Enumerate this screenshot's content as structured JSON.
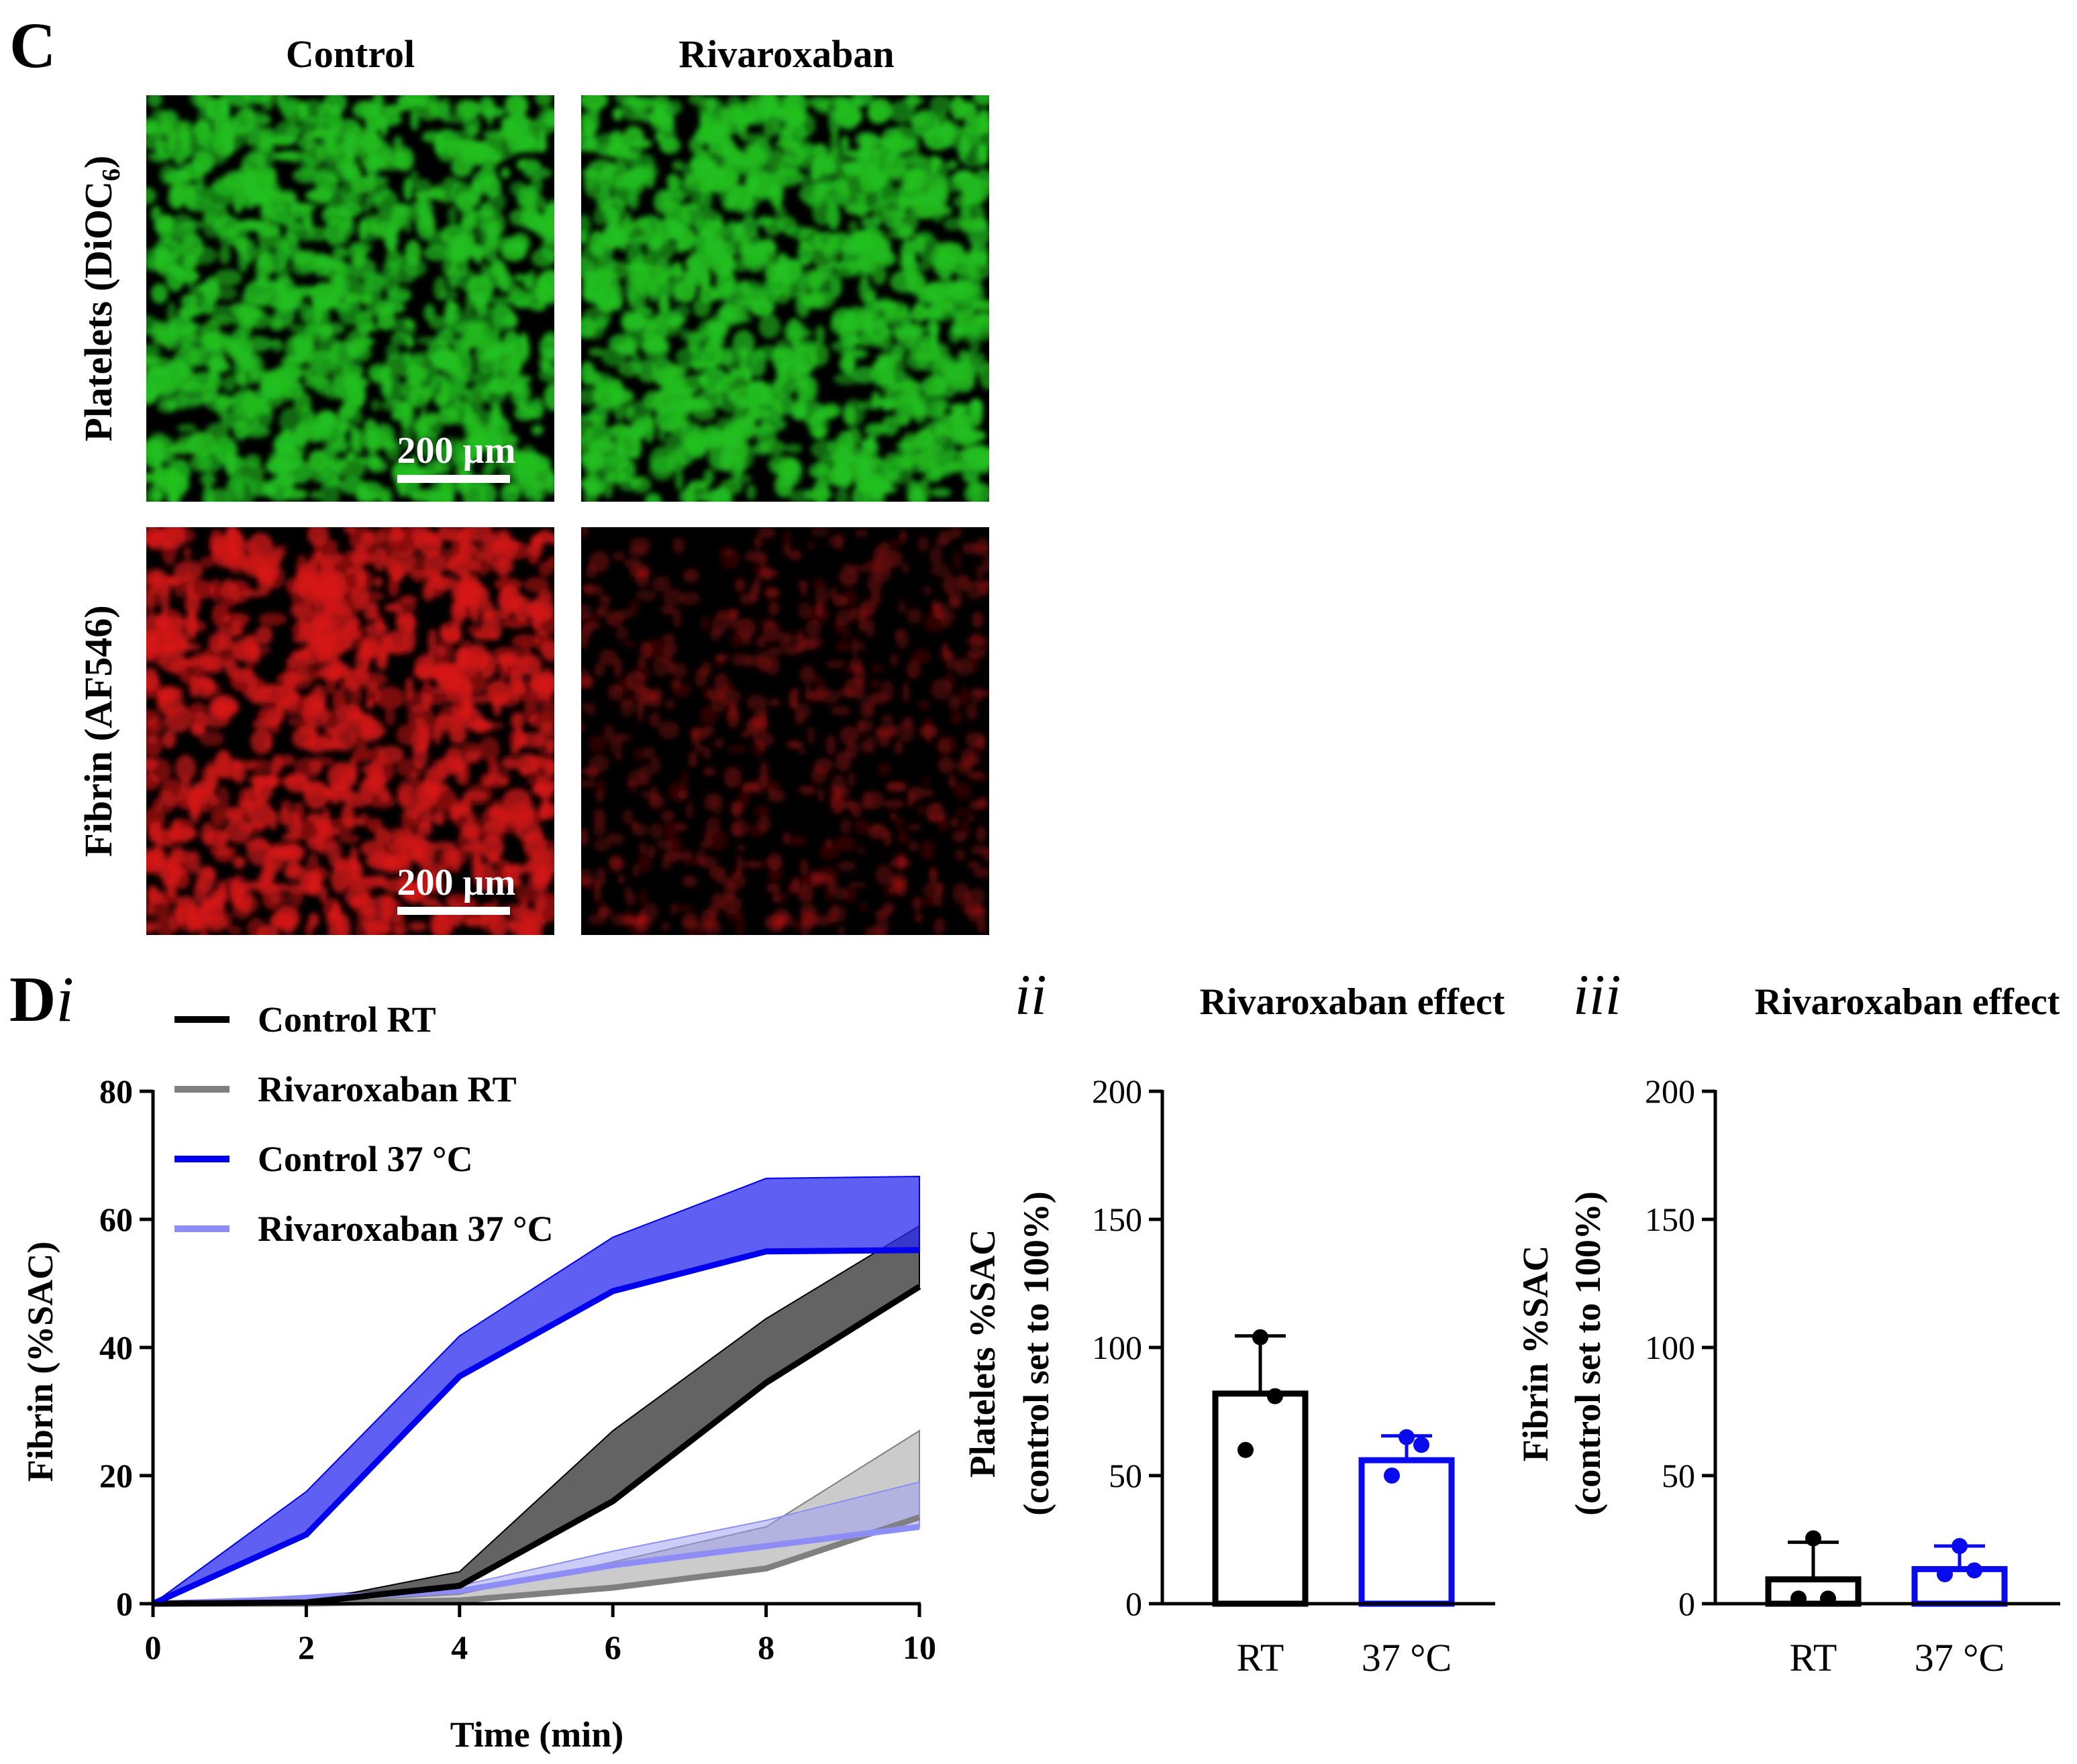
{
  "panel_c": {
    "label": "C",
    "columns": [
      "Control",
      "Rivaroxaban"
    ],
    "rows": [
      {
        "label_main": "Platelets (DiOC",
        "label_sub": "6",
        "label_end": ")",
        "channel": "green"
      },
      {
        "label_main": "Fibrin (AF546)",
        "label_sub": "",
        "label_end": "",
        "channel": "red"
      }
    ],
    "scale_bar": "200 µm",
    "colors": {
      "green": "#22c020",
      "red": "#d81818",
      "background": "#000000"
    }
  },
  "chart_data": [
    {
      "type": "area",
      "panel": "Di",
      "panel_letter": "D",
      "panel_roman": "i",
      "title": "",
      "xlabel": "Time (min)",
      "ylabel": "Fibrin (%SAC)",
      "xlim": [
        0,
        10
      ],
      "ylim": [
        0,
        80
      ],
      "xticks": [
        "0",
        "2",
        "4",
        "6",
        "8",
        "10"
      ],
      "yticks": [
        "0",
        "20",
        "40",
        "60",
        "80"
      ],
      "x": [
        0,
        2,
        4,
        6,
        8,
        10
      ],
      "legend_position": "top-left",
      "series": [
        {
          "name": "Control RT",
          "color": "#000000",
          "band_color": "#3c3c3c",
          "band_opacity": 0.8,
          "mean": [
            0,
            0.2,
            2.8,
            16,
            34.5,
            49.5
          ],
          "upper": [
            0,
            0.3,
            5,
            27,
            44.5,
            59
          ]
        },
        {
          "name": "Rivaroxaban RT",
          "color": "#808080",
          "band_color": "#a0a0a0",
          "band_opacity": 0.55,
          "mean": [
            0,
            0,
            0.5,
            2.5,
            5.5,
            13.5
          ],
          "upper": [
            0,
            0.1,
            1.5,
            6.5,
            12,
            27
          ]
        },
        {
          "name": "Control 37 °C",
          "color": "#0000ee",
          "band_color": "#2a2af0",
          "band_opacity": 0.75,
          "mean": [
            0,
            10.8,
            35.5,
            48.8,
            55,
            55.2
          ],
          "upper": [
            0,
            17.5,
            41.8,
            57.2,
            66.4,
            66.7
          ]
        },
        {
          "name": "Rivaroxaban 37 °C",
          "color": "#8d8df5",
          "band_color": "#9b9bf5",
          "band_opacity": 0.5,
          "mean": [
            0,
            0.8,
            2,
            6,
            9,
            12
          ],
          "upper": [
            0,
            1.3,
            2.8,
            8.2,
            13,
            19
          ]
        }
      ]
    },
    {
      "type": "bar",
      "panel": "ii",
      "title": "Rivaroxaban effect",
      "ylabel_line1": "Platelets %SAC",
      "ylabel_line2": "(control set to 100%)",
      "ylim": [
        0,
        200
      ],
      "yticks": [
        "0",
        "50",
        "100",
        "150",
        "200"
      ],
      "categories": [
        "RT",
        "37 °C"
      ],
      "values": [
        82,
        56
      ],
      "error_upper": [
        104.5,
        65.5
      ],
      "points": [
        [
          104,
          81,
          60
        ],
        [
          65,
          62,
          50
        ]
      ],
      "colors": [
        "#000000",
        "#0a0aee"
      ]
    },
    {
      "type": "bar",
      "panel": "iii",
      "title": "Rivaroxaban effect",
      "ylabel_line1": "Fibrin %SAC",
      "ylabel_line2": "(control set to 100%)",
      "ylim": [
        0,
        200
      ],
      "yticks": [
        "0",
        "50",
        "100",
        "150",
        "200"
      ],
      "categories": [
        "RT",
        "37 °C"
      ],
      "values": [
        9.5,
        13.5
      ],
      "error_upper": [
        24,
        22.5
      ],
      "points": [
        [
          25.5,
          2,
          2
        ],
        [
          22.5,
          13,
          11.5
        ]
      ],
      "colors": [
        "#000000",
        "#0a0aee"
      ]
    }
  ]
}
